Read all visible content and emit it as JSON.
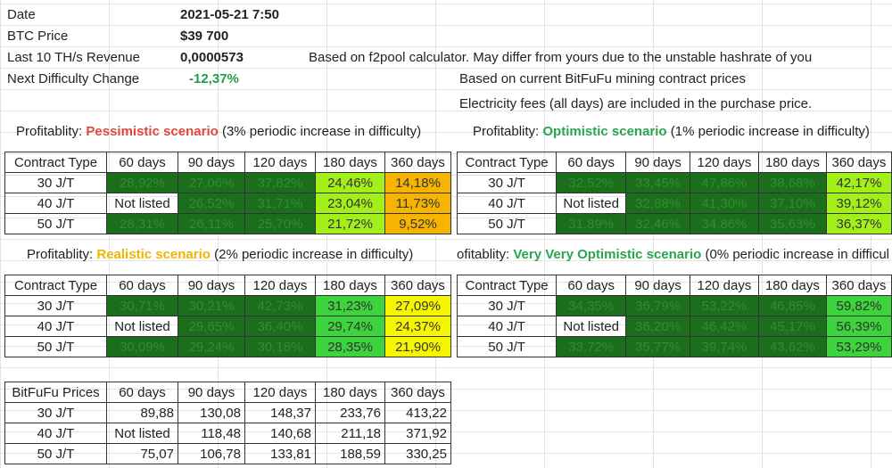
{
  "info": {
    "date_label": "Date",
    "date_value": "2021-05-21 7:50",
    "btc_label": "BTC Price",
    "btc_value": "$39 700",
    "revenue_label": "Last 10 TH/s Revenue",
    "revenue_value": "0,0000573",
    "difficulty_label": "Next Difficulty Change",
    "difficulty_value": "-12,37%",
    "note1": "Based on f2pool calculator. May differ from yours due to the unstable hashrate of you",
    "note2": "Based on current BitFuFu mining contract prices",
    "note3": "Electricity fees (all days) are included in the purchase price."
  },
  "scenarios": {
    "pessimistic": {
      "prefix": "Profitablity: ",
      "name": "Pessimistic scenario",
      "suffix": " (3% periodic increase in difficulty)"
    },
    "optimistic": {
      "prefix": "Profitablity: ",
      "name": "Optimistic scenario",
      "suffix": " (1% periodic increase in difficulty)"
    },
    "realistic": {
      "prefix": "Profitablity: ",
      "name": "Realistic scenario",
      "suffix": " (2% periodic increase in difficulty)"
    },
    "very_optimistic": {
      "prefix": "ofitablity: ",
      "name": "Very Very Optimistic scenario",
      "suffix": " (0% periodic increase in difficul"
    }
  },
  "headers": [
    "Contract Type",
    "60 days",
    "90 days",
    "120 days",
    "180 days",
    "360 days"
  ],
  "tables": {
    "pessimistic": [
      [
        "30 J/T",
        "28,92%",
        "27,06%",
        "37,82%",
        "24,46%",
        "14,18%"
      ],
      [
        "40 J/T",
        "Not listed",
        "26,52%",
        "31,71%",
        "23,04%",
        "11,73%"
      ],
      [
        "50 J/T",
        "28,31%",
        "26,11%",
        "25,70%",
        "21,72%",
        "9,52%"
      ]
    ],
    "optimistic": [
      [
        "30 J/T",
        "32,52%",
        "33,45%",
        "47,86%",
        "38,68%",
        "42,17%"
      ],
      [
        "40 J/T",
        "Not listed",
        "32,88%",
        "41,30%",
        "37,10%",
        "39,12%"
      ],
      [
        "50 J/T",
        "31,89%",
        "32,46%",
        "34,86%",
        "35,63%",
        "36,37%"
      ]
    ],
    "realistic": [
      [
        "30 J/T",
        "30,71%",
        "30,21%",
        "42,73%",
        "31,23%",
        "27,09%"
      ],
      [
        "40 J/T",
        "Not listed",
        "29,65%",
        "36,40%",
        "29,74%",
        "24,37%"
      ],
      [
        "50 J/T",
        "30,09%",
        "29,24%",
        "30,18%",
        "28,35%",
        "21,90%"
      ]
    ],
    "very_optimistic": [
      [
        "30 J/T",
        "34,35%",
        "36,79%",
        "53,22%",
        "46,85%",
        "59,82%"
      ],
      [
        "40 J/T",
        "Not listed",
        "36,20%",
        "46,42%",
        "45,17%",
        "56,39%"
      ],
      [
        "50 J/T",
        "33,72%",
        "35,77%",
        "39,74%",
        "43,62%",
        "53,29%"
      ]
    ]
  },
  "prices": {
    "headers": [
      "BitFuFu Prices",
      "60 days",
      "90 days",
      "120 days",
      "180 days",
      "360 days"
    ],
    "rows": [
      [
        "30 J/T",
        "89,88",
        "130,08",
        "148,37",
        "233,76",
        "413,22"
      ],
      [
        "40 J/T",
        "Not listed",
        "118,48",
        "140,68",
        "211,18",
        "371,92"
      ],
      [
        "50 J/T",
        "75,07",
        "106,78",
        "133,81",
        "188,59",
        "330,25"
      ]
    ]
  },
  "colors": {
    "dark_green": "#1b6e1b",
    "medium_green": "#3cd33c",
    "light_green": "#a3ef1a",
    "yellow": "#f6f600",
    "orange": "#f6b400",
    "pessimistic_red": "#e0473f",
    "optimistic_green": "#2aa44f",
    "realistic_yellow": "#f0b400"
  }
}
